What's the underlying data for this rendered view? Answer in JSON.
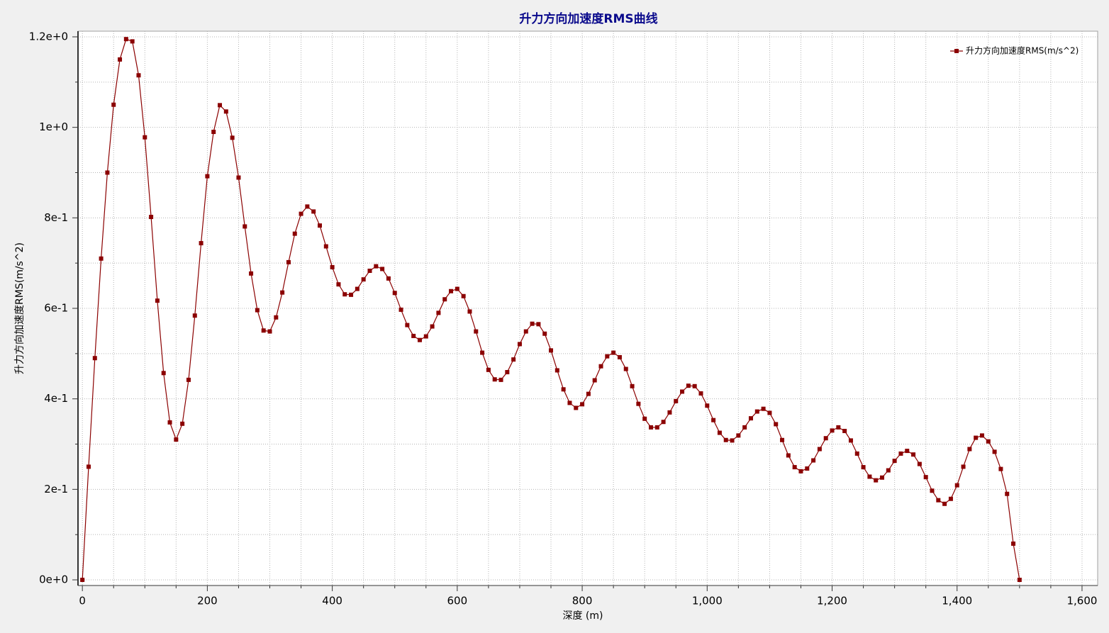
{
  "chart_data": {
    "type": "line",
    "title": "升力方向加速度RMS曲线",
    "x_label": "深度 (m)",
    "y_label": "升力方向加速度RMS(m/s^2)",
    "x": [
      0,
      10,
      20,
      30,
      40,
      50,
      60,
      70,
      80,
      90,
      100,
      110,
      120,
      130,
      140,
      150,
      160,
      170,
      180,
      190,
      200,
      210,
      220,
      230,
      240,
      250,
      260,
      270,
      280,
      290,
      300,
      310,
      320,
      330,
      340,
      350,
      360,
      370,
      380,
      390,
      400,
      410,
      420,
      430,
      440,
      450,
      460,
      470,
      480,
      490,
      500,
      510,
      520,
      530,
      540,
      550,
      560,
      570,
      580,
      590,
      600,
      610,
      620,
      630,
      640,
      650,
      660,
      670,
      680,
      690,
      700,
      710,
      720,
      730,
      740,
      750,
      760,
      770,
      780,
      790,
      800,
      810,
      820,
      830,
      840,
      850,
      860,
      870,
      880,
      890,
      900,
      910,
      920,
      930,
      940,
      950,
      960,
      970,
      980,
      990,
      1000,
      1010,
      1020,
      1030,
      1040,
      1050,
      1060,
      1070,
      1080,
      1090,
      1100,
      1110,
      1120,
      1130,
      1140,
      1150,
      1160,
      1170,
      1180,
      1190,
      1200,
      1210,
      1220,
      1230,
      1240,
      1250,
      1260,
      1270,
      1280,
      1290,
      1300,
      1310,
      1320,
      1330,
      1340,
      1350,
      1360,
      1370,
      1380,
      1390,
      1400,
      1410,
      1420,
      1430,
      1440,
      1450,
      1460,
      1470,
      1480,
      1490,
      1500
    ],
    "series": [
      {
        "name": "升力方向加速度RMS(m/s^2)",
        "color": "#8b0000",
        "values": [
          0,
          0.25,
          0.49,
          0.71,
          0.9,
          1.05,
          1.15,
          1.195,
          1.19,
          1.115,
          0.978,
          0.802,
          0.617,
          0.457,
          0.348,
          0.31,
          0.345,
          0.442,
          0.584,
          0.744,
          0.892,
          0.99,
          1.049,
          1.035,
          0.977,
          0.889,
          0.781,
          0.677,
          0.596,
          0.551,
          0.549,
          0.58,
          0.635,
          0.702,
          0.765,
          0.809,
          0.825,
          0.814,
          0.783,
          0.737,
          0.691,
          0.653,
          0.631,
          0.63,
          0.643,
          0.664,
          0.683,
          0.693,
          0.687,
          0.666,
          0.634,
          0.597,
          0.563,
          0.539,
          0.53,
          0.538,
          0.56,
          0.59,
          0.62,
          0.638,
          0.643,
          0.627,
          0.593,
          0.549,
          0.502,
          0.464,
          0.443,
          0.442,
          0.459,
          0.487,
          0.521,
          0.549,
          0.566,
          0.565,
          0.544,
          0.507,
          0.463,
          0.421,
          0.391,
          0.38,
          0.388,
          0.411,
          0.441,
          0.472,
          0.494,
          0.502,
          0.492,
          0.466,
          0.428,
          0.389,
          0.356,
          0.337,
          0.337,
          0.349,
          0.37,
          0.395,
          0.416,
          0.429,
          0.428,
          0.412,
          0.385,
          0.353,
          0.325,
          0.309,
          0.308,
          0.319,
          0.337,
          0.357,
          0.372,
          0.378,
          0.369,
          0.344,
          0.309,
          0.275,
          0.249,
          0.24,
          0.246,
          0.264,
          0.289,
          0.313,
          0.33,
          0.337,
          0.329,
          0.308,
          0.279,
          0.249,
          0.228,
          0.22,
          0.226,
          0.242,
          0.263,
          0.279,
          0.285,
          0.277,
          0.256,
          0.227,
          0.197,
          0.176,
          0.168,
          0.179,
          0.209,
          0.25,
          0.289,
          0.314,
          0.319,
          0.306,
          0.283,
          0.245,
          0.19,
          0.08,
          0
        ]
      }
    ],
    "xlim": [
      -7,
      1625
    ],
    "ylim": [
      -0.0125,
      1.2125
    ],
    "xticks": [
      0,
      200,
      400,
      600,
      800,
      {
        "value": 1000,
        "label": "1,000"
      },
      {
        "value": 1200,
        "label": "1,200"
      },
      {
        "value": 1400,
        "label": "1,400"
      },
      {
        "value": 1600,
        "label": "1,600"
      }
    ],
    "yticks": [
      {
        "value": 0,
        "label": "0e+0"
      },
      {
        "value": 0.2,
        "label": "2e-1"
      },
      {
        "value": 0.4,
        "label": "4e-1"
      },
      {
        "value": 0.6,
        "label": "6e-1"
      },
      {
        "value": 0.8,
        "label": "8e-1"
      },
      {
        "value": 1,
        "label": "1e+0"
      },
      {
        "value": 1.2,
        "label": "1.2e+0"
      }
    ],
    "x_minor_ticks": [
      50,
      100,
      150,
      250,
      300,
      350,
      450,
      500,
      550,
      650,
      700,
      750,
      850,
      900,
      950,
      1050,
      1100,
      1150,
      1250,
      1300,
      1350,
      1450,
      1500,
      1550
    ],
    "y_minor_ticks": [
      0.1,
      0.3,
      0.5,
      0.7,
      0.9,
      1.1
    ],
    "grid": true,
    "legend": "top-right"
  }
}
